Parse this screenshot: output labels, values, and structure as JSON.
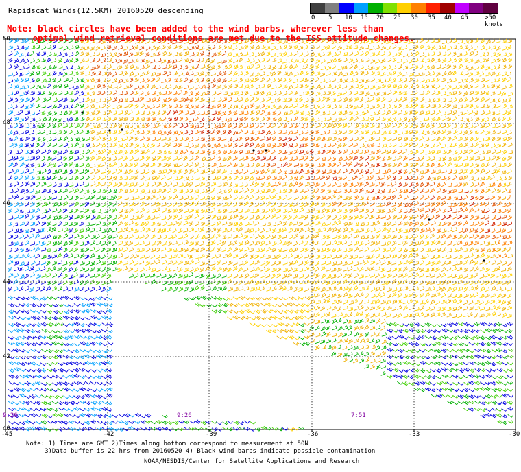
{
  "header": {
    "title": "Rapidscat Winds(12.5KM) 20160520 descending",
    "scale_ticks": [
      "0",
      "5",
      "10",
      "15",
      "20",
      "25",
      "30",
      "35",
      "40",
      "45",
      ">50 knots"
    ],
    "scale_colors": [
      "#404040",
      "#808080",
      "#0000ff",
      "#00a0ff",
      "#00b000",
      "#80e000",
      "#ffd000",
      "#ff8000",
      "#ff2000",
      "#a00000",
      "#c000ff",
      "#800080",
      "#600040"
    ]
  },
  "note": {
    "line1": "Note: black circles have been added to the wind barbs, wherever less than",
    "line2": "optimal wind retrieval conditions are met due to the ISS attitude changes."
  },
  "map": {
    "lat_labels": [
      "50",
      "48",
      "46",
      "44",
      "42",
      "40"
    ],
    "lon_labels": [
      "-45",
      "-42",
      "-39",
      "-36",
      "-33",
      "-30"
    ],
    "time_labels": [
      "9:26",
      "9:26",
      "7:51"
    ],
    "barb_colors": {
      "blue": "#0000e0",
      "lightblue": "#00a0ff",
      "green": "#00b000",
      "lightgreen": "#40d000",
      "yellow": "#ffd000",
      "gold": "#f0b000",
      "orange": "#ff8000",
      "darkorange": "#e05000",
      "red": "#d02000"
    }
  },
  "footer": {
    "line1": "Note: 1) Times are GMT 2)Times along bottom correspond to measurement at 50N",
    "line2": "3)Data buffer is 22 hrs from 20160520 4) Black wind barbs indicate possible contamination",
    "credit": "NOAA/NESDIS/Center for Satellite Applications and Research"
  }
}
